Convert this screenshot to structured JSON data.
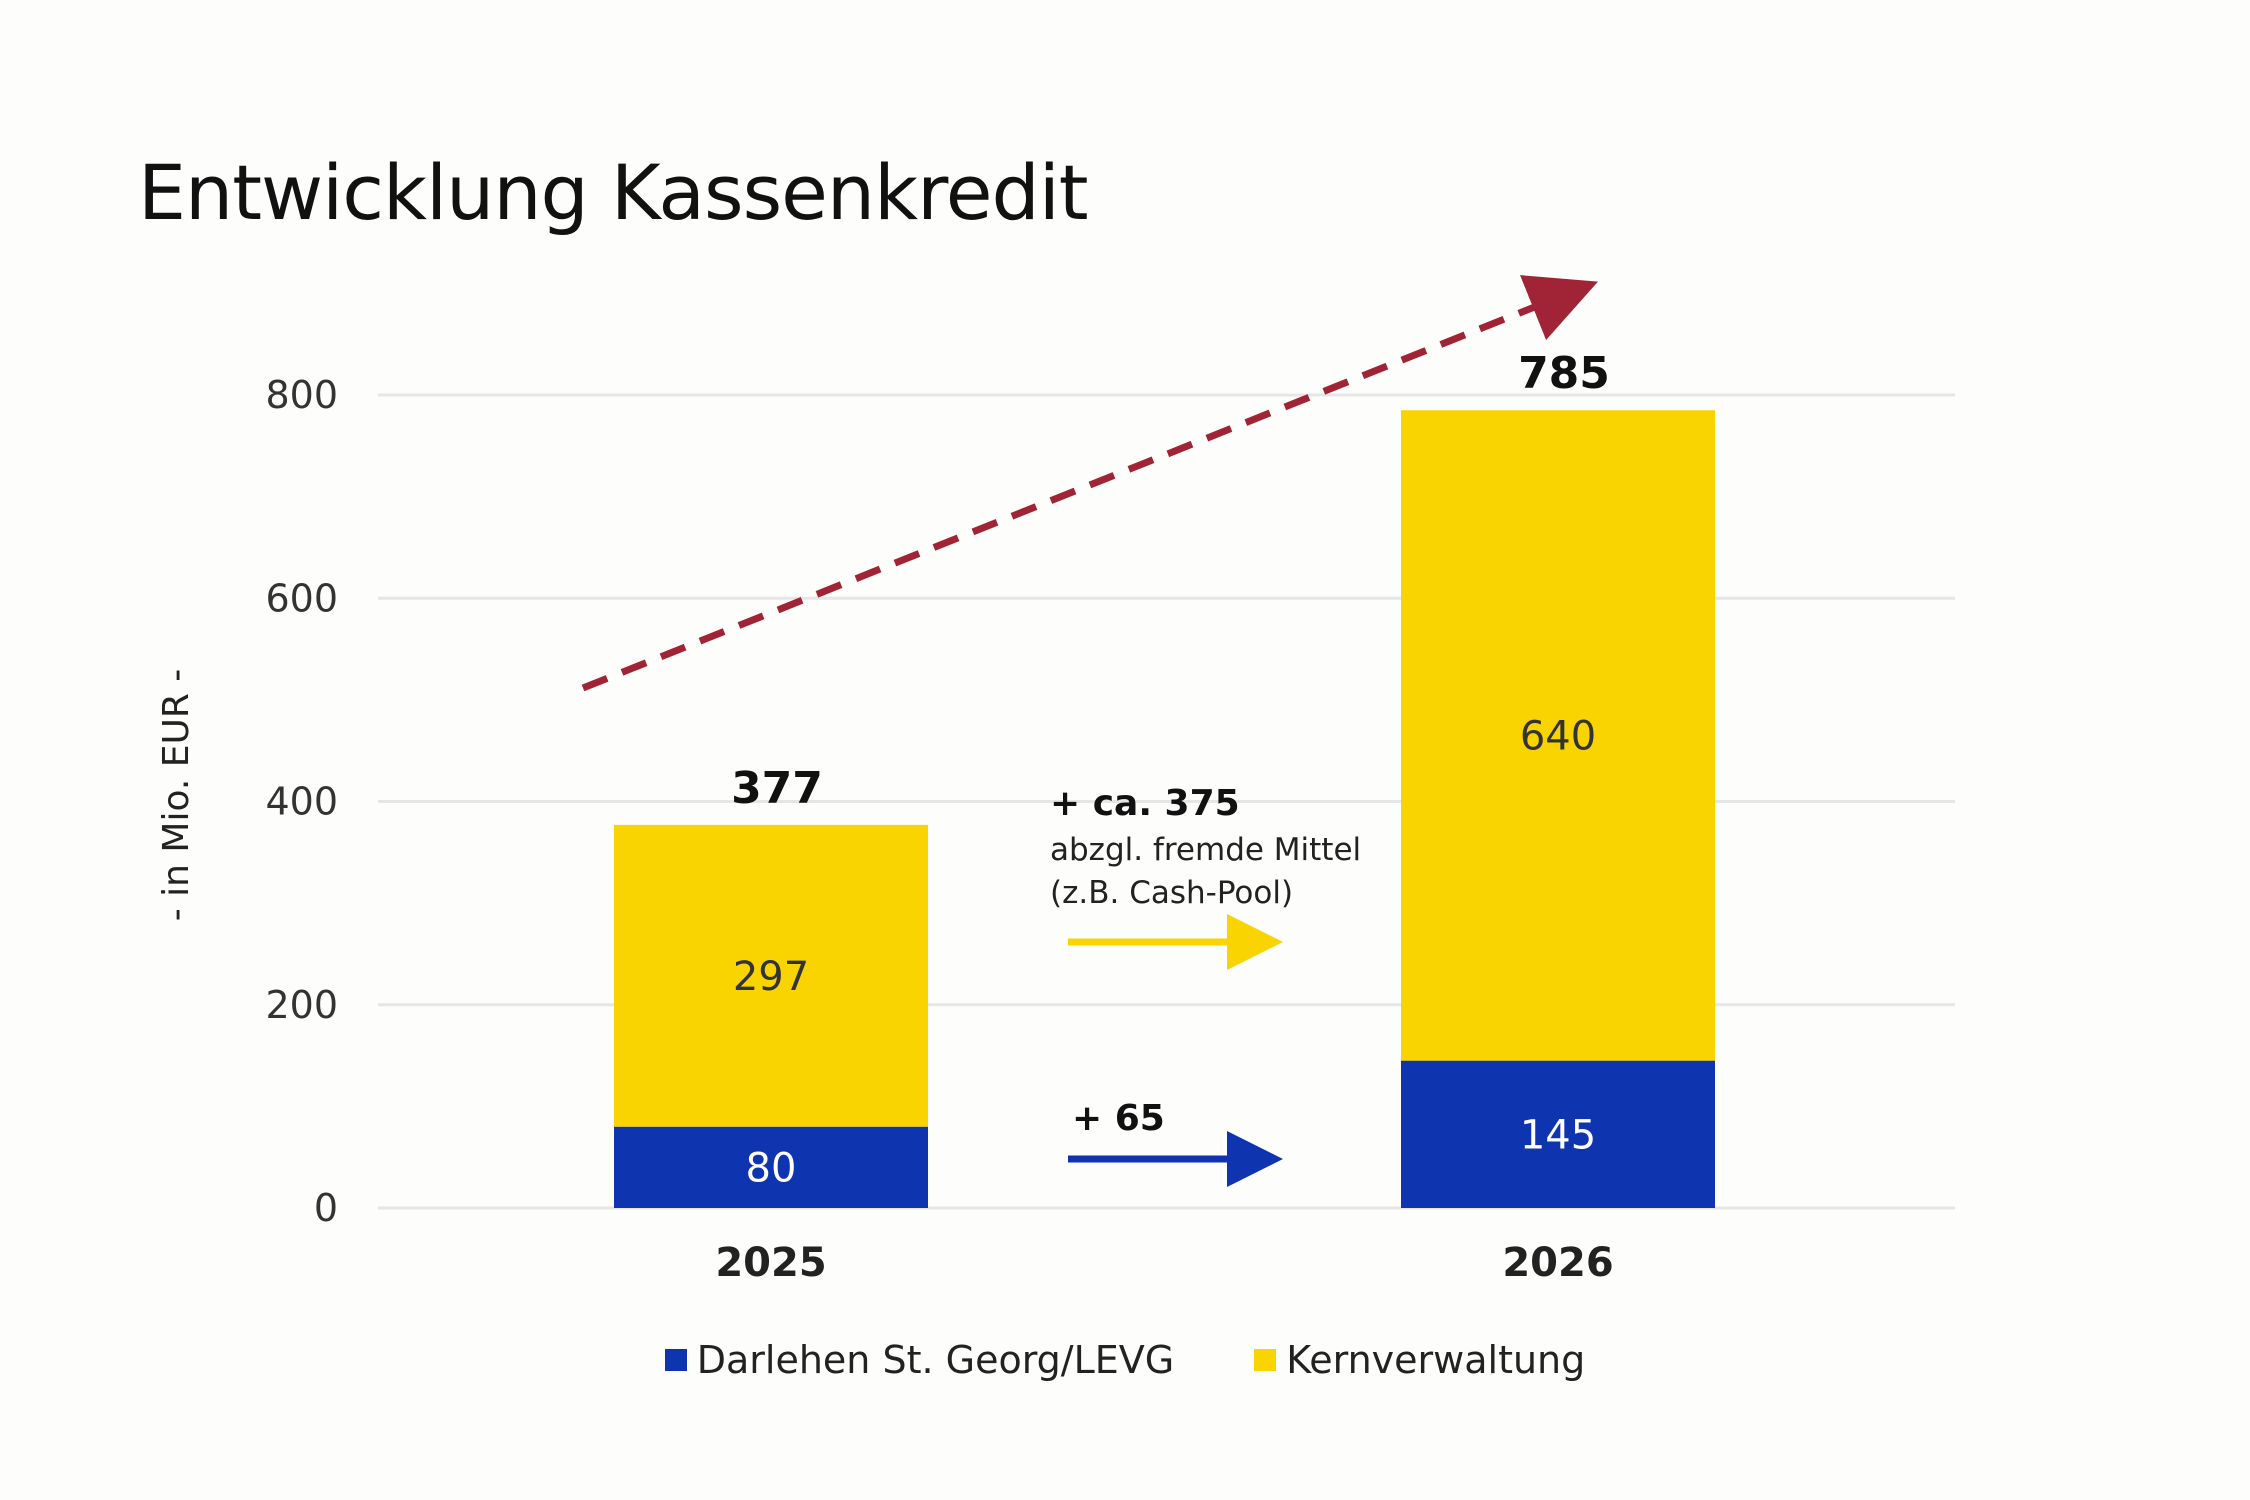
{
  "colors": {
    "darlehen": "#0f34b0",
    "kern": "#f9d400",
    "trend": "#a02436",
    "grid": "#e6e6e6"
  },
  "chart_data": {
    "type": "bar",
    "stacked": true,
    "title": "Entwicklung Kassenkredit",
    "ylabel": "- in Mio. EUR -",
    "ylim": [
      0,
      800
    ],
    "yticks": [
      0,
      200,
      400,
      600,
      800
    ],
    "grid": true,
    "categories": [
      "2025",
      "2026"
    ],
    "series": [
      {
        "name": "Darlehen St. Georg/LEVG",
        "values": [
          80,
          145
        ],
        "color": "#0f34b0",
        "label_color": "#ffffff"
      },
      {
        "name": "Kernverwaltung",
        "values": [
          297,
          640
        ],
        "color": "#f9d400",
        "label_color": "#333333"
      }
    ],
    "totals": [
      377,
      785
    ],
    "legend_position": "bottom",
    "annotations": {
      "kern": {
        "main": "+ ca. 375",
        "sub1": "abzgl. fremde Mittel",
        "sub2": "(z.B. Cash-Pool)"
      },
      "darlehen": {
        "main": "+ 65"
      }
    }
  }
}
